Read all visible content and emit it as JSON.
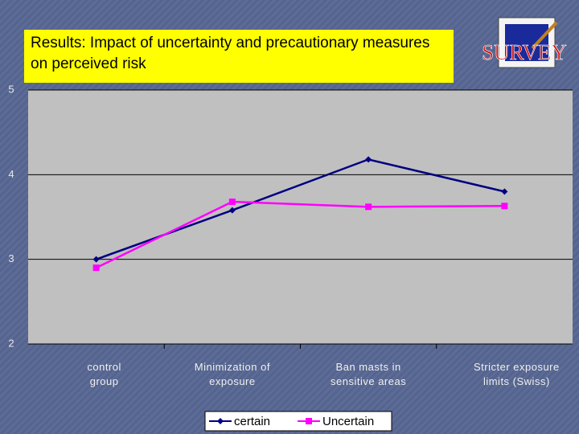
{
  "chart_data": {
    "type": "line",
    "title": "Results: Impact of uncertainty and precautionary measures on perceived risk",
    "logo": "SURVEY",
    "categories": [
      "control group",
      "Minimization of exposure",
      "Ban masts in sensitive areas",
      "Stricter exposure limits (Swiss)"
    ],
    "series": [
      {
        "name": "certain",
        "color": "#000080",
        "marker": "diamond",
        "values": [
          3.0,
          3.58,
          4.18,
          3.8
        ]
      },
      {
        "name": "Uncertain",
        "color": "#ff00ff",
        "marker": "square",
        "values": [
          2.9,
          3.68,
          3.62,
          3.63
        ]
      }
    ],
    "ylim": [
      2,
      5
    ],
    "yticks": [
      2,
      3,
      4,
      5
    ],
    "grid": true,
    "legend": "bottom"
  }
}
